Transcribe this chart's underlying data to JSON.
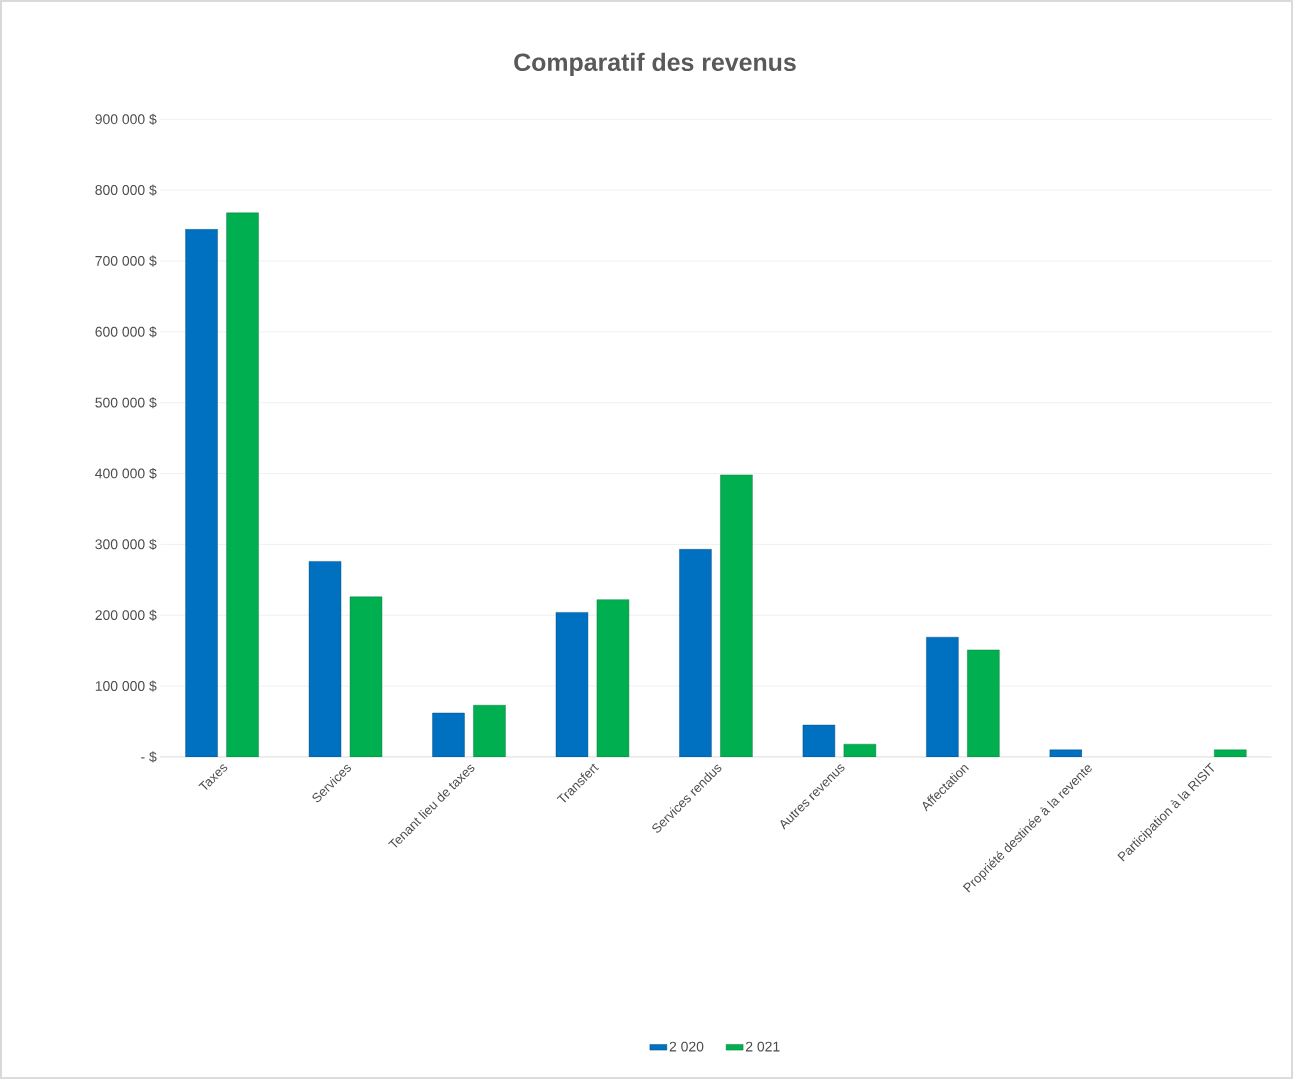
{
  "chart_data": {
    "type": "bar",
    "title": "Comparatif des revenus",
    "categories": [
      "Taxes",
      "Services",
      "Tenant lieu de taxes",
      "Transfert",
      "Services rendus",
      "Autres revenus",
      "Affectation",
      "Propriété destinée à la revente",
      "Participation à la RISIT"
    ],
    "series": [
      {
        "name": "2 020",
        "color": "#0070c0",
        "values": [
          745000,
          276000,
          62000,
          204000,
          293000,
          45000,
          169000,
          10000,
          null
        ]
      },
      {
        "name": "2 021",
        "color": "#00b050",
        "values": [
          768000,
          226000,
          73000,
          222000,
          398000,
          18000,
          151000,
          null,
          10000
        ]
      }
    ],
    "ylim": [
      0,
      900000
    ],
    "yticks": [
      {
        "value": 0,
        "label": "-   $"
      },
      {
        "value": 100000,
        "label": "100 000 $"
      },
      {
        "value": 200000,
        "label": "200 000 $"
      },
      {
        "value": 300000,
        "label": "300 000 $"
      },
      {
        "value": 400000,
        "label": "400 000 $"
      },
      {
        "value": 500000,
        "label": "500 000 $"
      },
      {
        "value": 600000,
        "label": "600 000 $"
      },
      {
        "value": 700000,
        "label": "700 000 $"
      },
      {
        "value": 800000,
        "label": "800 000 $"
      },
      {
        "value": 900000,
        "label": "900 000 $"
      }
    ],
    "grid": "y",
    "legend": "bottom"
  }
}
